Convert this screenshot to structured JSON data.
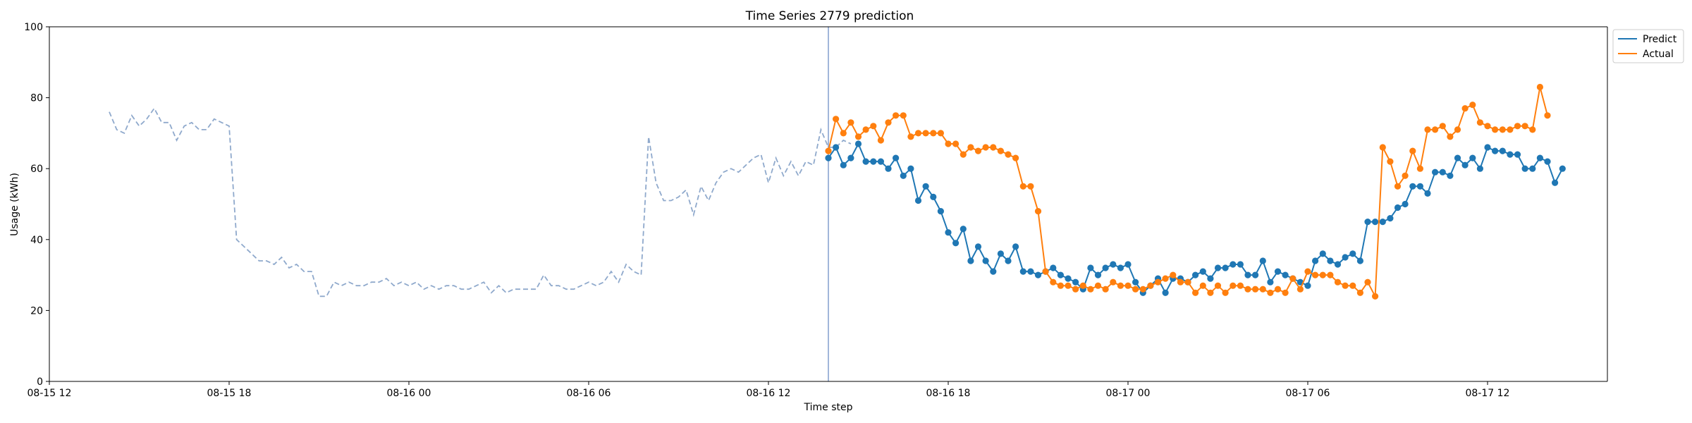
{
  "chart_data": {
    "type": "line",
    "title": "Time Series 2779 prediction",
    "xlabel": "Time step",
    "ylabel": "Usage (kWh)",
    "ylim": [
      0,
      100
    ],
    "yticks": [
      "0",
      "20",
      "40",
      "60",
      "80",
      "100"
    ],
    "xlim": [
      "2024-08-15 12:00",
      "2024-08-17 16:00"
    ],
    "xticks": [
      {
        "t": "2024-08-15 12:00",
        "label": "08-15 12"
      },
      {
        "t": "2024-08-15 18:00",
        "label": "08-15 18"
      },
      {
        "t": "2024-08-16 00:00",
        "label": "08-16 00"
      },
      {
        "t": "2024-08-16 06:00",
        "label": "08-16 06"
      },
      {
        "t": "2024-08-16 12:00",
        "label": "08-16 12"
      },
      {
        "t": "2024-08-16 18:00",
        "label": "08-16 18"
      },
      {
        "t": "2024-08-17 00:00",
        "label": "08-17 00"
      },
      {
        "t": "2024-08-17 06:00",
        "label": "08-17 06"
      },
      {
        "t": "2024-08-17 12:00",
        "label": "08-17 12"
      }
    ],
    "split_time": "2024-08-16 14:00",
    "step_minutes": 15,
    "legend_position": "upper-right-outside",
    "colors": {
      "history": "#8fa9cc",
      "predict": "#1f77b4",
      "actual": "#ff7f0e",
      "split": "#6f8fc7"
    },
    "history": {
      "start": "2024-08-15 14:00",
      "values": [
        76,
        71,
        70,
        75,
        72,
        74,
        77,
        73,
        73,
        68,
        72,
        73,
        71,
        71,
        74,
        73,
        72,
        40,
        38,
        36,
        34,
        34,
        33,
        35,
        32,
        33,
        31,
        31,
        24,
        24,
        28,
        27,
        28,
        27,
        27,
        28,
        28,
        29,
        27,
        28,
        27,
        28,
        26,
        27,
        26,
        27,
        27,
        26,
        26,
        27,
        28,
        25,
        27,
        25,
        26,
        26,
        26,
        26,
        30,
        27,
        27,
        26,
        26,
        27,
        28,
        27,
        28,
        31,
        28,
        33,
        31,
        30,
        69,
        56,
        51,
        51,
        52,
        54,
        47,
        55,
        51,
        56,
        59,
        60,
        59,
        61,
        63,
        64,
        56,
        63,
        58,
        62,
        58,
        62,
        61,
        71,
        66,
        66,
        68,
        67
      ]
    },
    "series": [
      {
        "name": "Predict",
        "start": "2024-08-16 14:00",
        "values": [
          63,
          66,
          61,
          63,
          67,
          62,
          62,
          62,
          60,
          63,
          58,
          60,
          51,
          55,
          52,
          48,
          42,
          39,
          43,
          34,
          38,
          34,
          31,
          36,
          34,
          38,
          31,
          31,
          30,
          31,
          32,
          30,
          29,
          28,
          26,
          32,
          30,
          32,
          33,
          32,
          33,
          28,
          25,
          27,
          29,
          25,
          29,
          29,
          28,
          30,
          31,
          29,
          32,
          32,
          33,
          33,
          30,
          30,
          34,
          28,
          31,
          30,
          29,
          28,
          27,
          34,
          36,
          34,
          33,
          35,
          36,
          34,
          45,
          45,
          45,
          46,
          49,
          50,
          55,
          55,
          53,
          59,
          59,
          58,
          63,
          61,
          63,
          60,
          66,
          65,
          65,
          64,
          64,
          60,
          60,
          63,
          62,
          56,
          60
        ]
      },
      {
        "name": "Actual",
        "start": "2024-08-16 14:00",
        "values": [
          65,
          74,
          70,
          73,
          69,
          71,
          72,
          68,
          73,
          75,
          75,
          69,
          70,
          70,
          70,
          70,
          67,
          67,
          64,
          66,
          65,
          66,
          66,
          65,
          64,
          63,
          55,
          55,
          48,
          31,
          28,
          27,
          27,
          26,
          27,
          26,
          27,
          26,
          28,
          27,
          27,
          26,
          26,
          27,
          28,
          29,
          30,
          28,
          28,
          25,
          27,
          25,
          27,
          25,
          27,
          27,
          26,
          26,
          26,
          25,
          26,
          25,
          29,
          26,
          31,
          30,
          30,
          30,
          28,
          27,
          27,
          25,
          28,
          24,
          66,
          62,
          55,
          58,
          65,
          60,
          71,
          71,
          72,
          69,
          71,
          77,
          78,
          73,
          72,
          71,
          71,
          71,
          72,
          72,
          71,
          83,
          75
        ]
      }
    ]
  }
}
